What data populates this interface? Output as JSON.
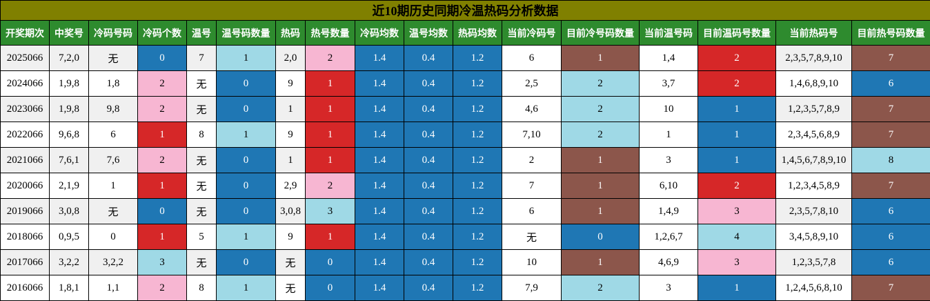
{
  "title": "近10期历史同期冷温热码分析数据",
  "palette": {
    "blue": "#1f77b4",
    "light": "#9fd9e6",
    "pink": "#f7b6d2",
    "red": "#d62728",
    "brown": "#8c564b",
    "header_green": "#2e8b2e",
    "title_olive": "#808000"
  },
  "columns": [
    "开奖期次",
    "中奖号",
    "冷码号码",
    "冷码个数",
    "温号",
    "温号码数量",
    "热码",
    "热号数量",
    "冷码均数",
    "温号均数",
    "热码均数",
    "当前冷码号",
    "目前冷号码数量",
    "当前温号码",
    "目前温码号数量",
    "当前热码号",
    "目前热号码数量"
  ],
  "rows": [
    {
      "cells": [
        "2025066",
        "7,2,0",
        "无",
        "0",
        "7",
        "1",
        "2,0",
        "2",
        "1.4",
        "0.4",
        "1.2",
        "6",
        "1",
        "1,4",
        "2",
        "2,3,5,7,8,9,10",
        "7"
      ],
      "colors": [
        "",
        "",
        "",
        "blue",
        "",
        "light",
        "",
        "pink",
        "blue",
        "blue",
        "blue",
        "white",
        "brown",
        "white",
        "red",
        "",
        "brown"
      ]
    },
    {
      "cells": [
        "2024066",
        "1,9,8",
        "1,8",
        "2",
        "无",
        "0",
        "9",
        "1",
        "1.4",
        "0.4",
        "1.2",
        "2,5",
        "2",
        "3,7",
        "2",
        "1,4,6,8,9,10",
        "6"
      ],
      "colors": [
        "",
        "",
        "",
        "pink",
        "",
        "blue",
        "",
        "red",
        "blue",
        "blue",
        "blue",
        "",
        "light",
        "",
        "red",
        "",
        "blue"
      ]
    },
    {
      "cells": [
        "2023066",
        "1,9,8",
        "9,8",
        "2",
        "无",
        "0",
        "1",
        "1",
        "1.4",
        "0.4",
        "1.2",
        "4,6",
        "2",
        "10",
        "1",
        "1,2,3,5,7,8,9",
        "7"
      ],
      "colors": [
        "",
        "",
        "",
        "pink",
        "",
        "blue",
        "",
        "red",
        "blue",
        "blue",
        "blue",
        "white",
        "light",
        "white",
        "blue",
        "",
        "brown"
      ]
    },
    {
      "cells": [
        "2022066",
        "9,6,8",
        "6",
        "1",
        "8",
        "1",
        "9",
        "1",
        "1.4",
        "0.4",
        "1.2",
        "7,10",
        "2",
        "1",
        "1",
        "2,3,4,5,6,8,9",
        "7"
      ],
      "colors": [
        "",
        "",
        "",
        "red",
        "",
        "light",
        "",
        "red",
        "blue",
        "blue",
        "blue",
        "",
        "light",
        "",
        "blue",
        "",
        "brown"
      ]
    },
    {
      "cells": [
        "2021066",
        "7,6,1",
        "7,6",
        "2",
        "无",
        "0",
        "1",
        "1",
        "1.4",
        "0.4",
        "1.2",
        "2",
        "1",
        "3",
        "1",
        "1,4,5,6,7,8,9,10",
        "8"
      ],
      "colors": [
        "",
        "",
        "",
        "pink",
        "",
        "blue",
        "",
        "red",
        "blue",
        "blue",
        "blue",
        "white",
        "brown",
        "white",
        "blue",
        "",
        "light"
      ]
    },
    {
      "cells": [
        "2020066",
        "2,1,9",
        "1",
        "1",
        "无",
        "0",
        "2,9",
        "2",
        "1.4",
        "0.4",
        "1.2",
        "7",
        "1",
        "6,10",
        "2",
        "1,2,3,4,5,8,9",
        "7"
      ],
      "colors": [
        "",
        "",
        "",
        "red",
        "",
        "blue",
        "",
        "pink",
        "blue",
        "blue",
        "blue",
        "",
        "brown",
        "",
        "red",
        "",
        "brown"
      ]
    },
    {
      "cells": [
        "2019066",
        "3,0,8",
        "无",
        "0",
        "无",
        "0",
        "3,0,8",
        "3",
        "1.4",
        "0.4",
        "1.2",
        "6",
        "1",
        "1,4,9",
        "3",
        "2,3,5,7,8,10",
        "6"
      ],
      "colors": [
        "",
        "",
        "",
        "blue",
        "",
        "blue",
        "",
        "light",
        "blue",
        "blue",
        "blue",
        "white",
        "brown",
        "white",
        "pink",
        "",
        "blue"
      ]
    },
    {
      "cells": [
        "2018066",
        "0,9,5",
        "0",
        "1",
        "5",
        "1",
        "9",
        "1",
        "1.4",
        "0.4",
        "1.2",
        "无",
        "0",
        "1,2,6,7",
        "4",
        "3,4,5,8,9,10",
        "6"
      ],
      "colors": [
        "",
        "",
        "",
        "red",
        "",
        "light",
        "",
        "red",
        "blue",
        "blue",
        "blue",
        "",
        "blue",
        "",
        "light",
        "",
        "blue"
      ]
    },
    {
      "cells": [
        "2017066",
        "3,2,2",
        "3,2,2",
        "3",
        "无",
        "0",
        "无",
        "0",
        "1.4",
        "0.4",
        "1.2",
        "10",
        "1",
        "4,6,9",
        "3",
        "1,2,3,5,7,8",
        "6"
      ],
      "colors": [
        "",
        "",
        "",
        "light",
        "",
        "blue",
        "",
        "blue",
        "blue",
        "blue",
        "blue",
        "white",
        "brown",
        "white",
        "pink",
        "",
        "blue"
      ]
    },
    {
      "cells": [
        "2016066",
        "1,8,1",
        "1,1",
        "2",
        "8",
        "1",
        "无",
        "0",
        "1.4",
        "0.4",
        "1.2",
        "7,9",
        "2",
        "3",
        "1",
        "1,2,4,5,6,8,10",
        "7"
      ],
      "colors": [
        "",
        "",
        "",
        "pink",
        "",
        "light",
        "",
        "blue",
        "blue",
        "blue",
        "blue",
        "",
        "light",
        "",
        "blue",
        "",
        "brown"
      ]
    }
  ]
}
